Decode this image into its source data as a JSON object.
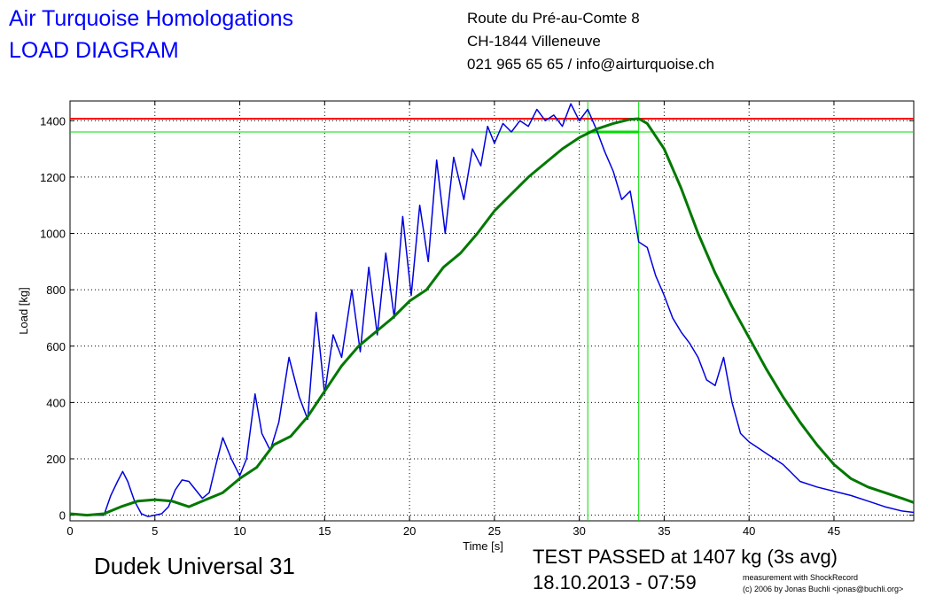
{
  "header": {
    "title_line1": "Air Turquoise Homologations",
    "title_line2": "LOAD DIAGRAM",
    "address_line1": "Route du Pré-au-Comte 8",
    "address_line2": "CH-1844 Villeneuve",
    "address_line3": "021 965 65 65 / info@airturquoise.ch"
  },
  "footer": {
    "model": "Dudek Universal 31",
    "result": "TEST PASSED at 1407 kg (3s avg)",
    "datetime": "18.10.2013 - 07:59",
    "credit_line1": "measurement with ShockRecord",
    "credit_line2": "(c) 2006 by Jonas Buchli <jonas@buchli.org>"
  },
  "colors": {
    "raw": "#0000e0",
    "avg": "#007800",
    "limit": "#ff0000",
    "marker": "#00dd00"
  },
  "chart_data": {
    "type": "line",
    "xlabel": "Time [s]",
    "ylabel": "Load [kg]",
    "xlim": [
      0,
      49.7
    ],
    "ylim": [
      -20,
      1470
    ],
    "xticks": [
      0,
      5,
      10,
      15,
      20,
      25,
      30,
      35,
      40,
      45
    ],
    "yticks": [
      0,
      200,
      400,
      600,
      800,
      1000,
      1200,
      1400
    ],
    "grid": true,
    "limit_load": 1407,
    "marker_load": 1360,
    "window_start": 30.5,
    "window_end": 33.5,
    "series": [
      {
        "x": [
          0,
          1,
          2,
          2.4,
          2.8,
          3.1,
          3.4,
          3.8,
          4.2,
          4.6,
          5.0,
          5.4,
          5.8,
          6.2,
          6.6,
          7.0,
          7.4,
          7.8,
          8.2,
          8.6,
          9.0,
          9.5,
          10.0,
          10.4,
          10.9,
          11.3,
          11.8,
          12.3,
          12.9,
          13.5,
          14.0,
          14.5,
          15.0,
          15.5,
          16.0,
          16.6,
          17.1,
          17.6,
          18.1,
          18.6,
          19.1,
          19.6,
          20.1,
          20.6,
          21.1,
          21.6,
          22.1,
          22.6,
          23.2,
          23.7,
          24.2,
          24.6,
          25.0,
          25.5,
          26.0,
          26.5,
          27.0,
          27.5,
          28.0,
          28.5,
          29.0,
          29.5,
          30.0,
          30.5,
          31.0,
          31.5,
          32.0,
          32.5,
          33.0,
          33.5,
          34.0,
          34.5,
          35.0,
          35.5,
          36.0,
          36.5,
          37.0,
          37.5,
          38.0,
          38.5,
          39.0,
          39.5,
          40.0,
          40.5,
          41.0,
          41.5,
          42.0,
          42.5,
          43.0,
          44.0,
          45.0,
          46.0,
          47.0,
          48.0,
          49.0,
          49.7
        ],
        "y": [
          5,
          0,
          0,
          70,
          120,
          155,
          120,
          50,
          5,
          -5,
          0,
          5,
          30,
          90,
          125,
          120,
          90,
          60,
          80,
          180,
          275,
          200,
          140,
          200,
          430,
          290,
          230,
          330,
          560,
          420,
          340,
          720,
          430,
          640,
          560,
          800,
          580,
          880,
          640,
          930,
          700,
          1060,
          780,
          1100,
          900,
          1260,
          1000,
          1270,
          1120,
          1300,
          1240,
          1380,
          1320,
          1390,
          1360,
          1400,
          1380,
          1440,
          1400,
          1420,
          1380,
          1460,
          1400,
          1440,
          1370,
          1290,
          1220,
          1120,
          1150,
          970,
          950,
          850,
          780,
          700,
          650,
          610,
          560,
          480,
          460,
          560,
          400,
          290,
          260,
          240,
          220,
          200,
          180,
          150,
          120,
          100,
          85,
          70,
          50,
          30,
          15,
          10
        ]
      },
      {
        "x": [
          0,
          1,
          2,
          3,
          4,
          5,
          6,
          7,
          8,
          9,
          10,
          11,
          12,
          13,
          14,
          15,
          16,
          17,
          18,
          19,
          20,
          21,
          22,
          23,
          24,
          25,
          26,
          27,
          28,
          29,
          30,
          31,
          32,
          33,
          33.5,
          34,
          35,
          36,
          37,
          38,
          39,
          40,
          41,
          42,
          43,
          44,
          45,
          46,
          47,
          48,
          49,
          49.7
        ],
        "y": [
          5,
          0,
          5,
          30,
          50,
          55,
          50,
          30,
          55,
          80,
          130,
          170,
          250,
          280,
          350,
          440,
          530,
          600,
          650,
          700,
          760,
          800,
          880,
          930,
          1000,
          1080,
          1140,
          1200,
          1250,
          1300,
          1340,
          1370,
          1390,
          1405,
          1407,
          1390,
          1300,
          1160,
          1000,
          860,
          740,
          630,
          520,
          420,
          330,
          250,
          180,
          130,
          100,
          80,
          60,
          45
        ]
      }
    ]
  }
}
